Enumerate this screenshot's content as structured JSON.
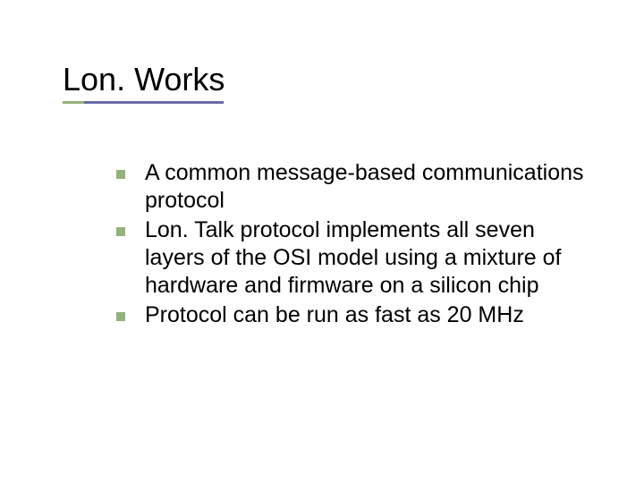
{
  "slide": {
    "title": "Lon. Works",
    "title_color": "#000000",
    "title_fontsize": 36,
    "underline": {
      "accent_color": "#94b27a",
      "main_color": "#6a6aa8"
    },
    "bullets": [
      {
        "text": "A common message-based communications protocol"
      },
      {
        "text": "Lon. Talk protocol implements all seven layers of the OSI model using a mixture of hardware and firmware on a silicon chip"
      },
      {
        "text": "Protocol can be run as fast as 20 MHz"
      }
    ],
    "bullet_marker_color": "#94b27a",
    "body_fontsize": 25,
    "body_color": "#000000",
    "background_color": "#ffffff"
  }
}
